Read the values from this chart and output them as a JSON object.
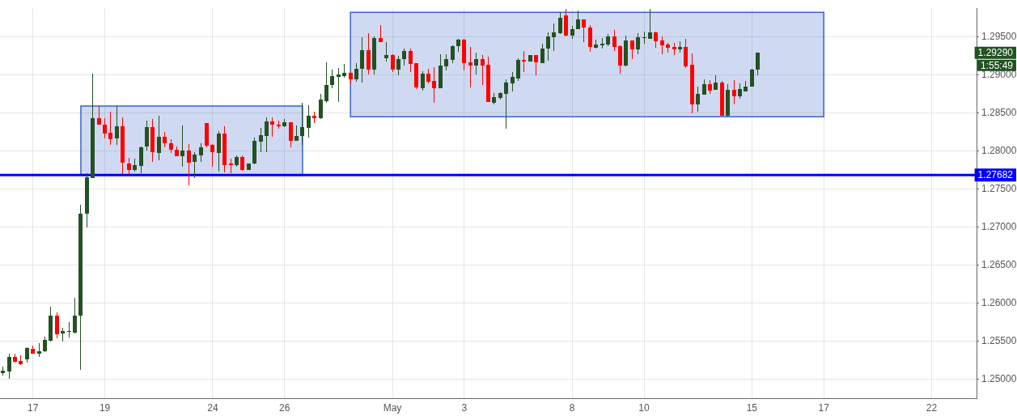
{
  "chart_data": {
    "type": "candlestick",
    "categories": [
      null,
      null,
      null,
      null,
      null,
      "17",
      null,
      null,
      null,
      null,
      null,
      null,
      null,
      null,
      null,
      null,
      null,
      "19",
      null,
      null,
      null,
      null,
      null,
      null,
      null,
      null,
      null,
      null,
      null,
      null,
      null,
      null,
      null,
      null,
      null,
      "24",
      null,
      null,
      null,
      null,
      null,
      null,
      null,
      null,
      null,
      null,
      null,
      "26",
      null,
      null,
      null,
      null,
      null,
      null,
      null,
      null,
      null,
      null,
      null,
      null,
      null,
      null,
      null,
      null,
      null,
      "May",
      null,
      null,
      null,
      null,
      null,
      null,
      null,
      null,
      null,
      null,
      null,
      "3",
      null,
      null,
      null,
      null,
      null,
      null,
      null,
      null,
      null,
      null,
      null,
      null,
      null,
      null,
      null,
      null,
      null,
      "8",
      null,
      null,
      null,
      null,
      null,
      null,
      null,
      null,
      null,
      null,
      null,
      "10",
      null,
      null,
      null,
      null,
      null,
      null,
      null,
      null,
      null,
      null,
      null,
      null,
      null,
      null,
      null,
      null,
      null,
      "15",
      null,
      null,
      null,
      null,
      null,
      null,
      null,
      null,
      null,
      null,
      null,
      "17",
      null,
      null,
      null,
      null,
      null,
      null,
      null,
      null,
      null,
      null,
      null,
      null,
      null,
      null,
      null,
      null,
      null,
      "22",
      null,
      null,
      null,
      null,
      null,
      null,
      null
    ],
    "ohlc": [
      [
        1.2508,
        1.2516,
        1.2505,
        1.2511
      ],
      [
        1.251,
        1.2533,
        1.2501,
        1.2529
      ],
      [
        1.2529,
        1.2533,
        1.2522,
        1.2523
      ],
      [
        1.2524,
        1.2531,
        1.2519,
        1.252
      ],
      [
        1.2526,
        1.2542,
        1.2522,
        1.2541
      ],
      [
        1.254,
        1.2544,
        1.2534,
        1.2534
      ],
      [
        1.2534,
        1.2547,
        1.2529,
        1.2537
      ],
      [
        1.2537,
        1.2556,
        1.2536,
        1.2552
      ],
      [
        1.2551,
        1.2595,
        1.2549,
        1.2584
      ],
      [
        1.2584,
        1.2588,
        1.2554,
        1.256
      ],
      [
        1.256,
        1.2568,
        1.2549,
        1.2563
      ],
      [
        1.2562,
        1.2575,
        1.2555,
        1.2563
      ],
      [
        1.2562,
        1.2607,
        1.256,
        1.2584
      ],
      [
        1.2584,
        1.2729,
        1.2512,
        1.2718
      ],
      [
        1.2717,
        1.2771,
        1.2699,
        1.2765
      ],
      [
        1.2764,
        1.2902,
        1.2764,
        1.2843
      ],
      [
        1.2843,
        1.2859,
        1.2835,
        1.2835
      ],
      [
        1.2835,
        1.2843,
        1.2816,
        1.2823
      ],
      [
        1.2824,
        1.2852,
        1.2808,
        1.2816
      ],
      [
        1.2816,
        1.2859,
        1.2808,
        1.2832
      ],
      [
        1.2832,
        1.2844,
        1.277,
        1.2784
      ],
      [
        1.2784,
        1.2791,
        1.2769,
        1.2776
      ],
      [
        1.2775,
        1.279,
        1.2773,
        1.2781
      ],
      [
        1.2781,
        1.2806,
        1.2771,
        1.2805
      ],
      [
        1.2805,
        1.284,
        1.2801,
        1.2831
      ],
      [
        1.2831,
        1.2842,
        1.2786,
        1.2798
      ],
      [
        1.2798,
        1.2846,
        1.2788,
        1.2819
      ],
      [
        1.2819,
        1.2825,
        1.2805,
        1.281
      ],
      [
        1.281,
        1.2815,
        1.2797,
        1.2801
      ],
      [
        1.2802,
        1.2806,
        1.2793,
        1.2794
      ],
      [
        1.2794,
        1.2833,
        1.2779,
        1.2801
      ],
      [
        1.2801,
        1.2809,
        1.2755,
        1.2785
      ],
      [
        1.2785,
        1.2798,
        1.2764,
        1.2795
      ],
      [
        1.2794,
        1.281,
        1.2786,
        1.2805
      ],
      [
        1.2837,
        1.2837,
        1.2805,
        1.2807
      ],
      [
        1.2808,
        1.2809,
        1.2779,
        1.2798
      ],
      [
        1.2798,
        1.2826,
        1.2773,
        1.2823
      ],
      [
        1.2823,
        1.2832,
        1.2772,
        1.2781
      ],
      [
        1.2783,
        1.279,
        1.2771,
        1.2781
      ],
      [
        1.2781,
        1.2794,
        1.2779,
        1.2792
      ],
      [
        1.2792,
        1.2794,
        1.2774,
        1.2775
      ],
      [
        1.2775,
        1.2784,
        1.2775,
        1.2783
      ],
      [
        1.2783,
        1.2818,
        1.2782,
        1.2813
      ],
      [
        1.2812,
        1.283,
        1.2798,
        1.2821
      ],
      [
        1.282,
        1.2844,
        1.2798,
        1.2839
      ],
      [
        1.2839,
        1.2844,
        1.2819,
        1.2835
      ],
      [
        1.2835,
        1.284,
        1.2829,
        1.2833
      ],
      [
        1.2833,
        1.2842,
        1.2831,
        1.2838
      ],
      [
        1.2838,
        1.2838,
        1.2805,
        1.2814
      ],
      [
        1.2814,
        1.2834,
        1.2813,
        1.282
      ],
      [
        1.2819,
        1.2863,
        1.2808,
        1.2831
      ],
      [
        1.283,
        1.286,
        1.2818,
        1.2846
      ],
      [
        1.2846,
        1.2852,
        1.2837,
        1.2843
      ],
      [
        1.2843,
        1.2875,
        1.2842,
        1.2867
      ],
      [
        1.2866,
        1.2916,
        1.2863,
        1.2887
      ],
      [
        1.2886,
        1.2907,
        1.2882,
        1.2898
      ],
      [
        1.2897,
        1.2909,
        1.2864,
        1.29
      ],
      [
        1.2899,
        1.2914,
        1.2896,
        1.2903
      ],
      [
        1.2903,
        1.2904,
        1.2888,
        1.2894
      ],
      [
        1.2894,
        1.2915,
        1.2891,
        1.2908
      ],
      [
        1.2908,
        1.2949,
        1.289,
        1.2932
      ],
      [
        1.2932,
        1.2955,
        1.2901,
        1.2907
      ],
      [
        1.2907,
        1.295,
        1.2901,
        1.2948
      ],
      [
        1.2948,
        1.2965,
        1.2943,
        1.2943
      ],
      [
        1.2922,
        1.2943,
        1.2917,
        1.2926
      ],
      [
        1.2926,
        1.2927,
        1.2904,
        1.2907
      ],
      [
        1.2907,
        1.2925,
        1.2899,
        1.2921
      ],
      [
        1.292,
        1.2935,
        1.2912,
        1.2931
      ],
      [
        1.2931,
        1.2935,
        1.2904,
        1.2914
      ],
      [
        1.2915,
        1.2915,
        1.2881,
        1.2883
      ],
      [
        1.2883,
        1.2905,
        1.2879,
        1.2902
      ],
      [
        1.2902,
        1.2908,
        1.2889,
        1.2891
      ],
      [
        1.2892,
        1.291,
        1.2863,
        1.2882
      ],
      [
        1.2882,
        1.2927,
        1.2882,
        1.2912
      ],
      [
        1.2911,
        1.2927,
        1.2906,
        1.2921
      ],
      [
        1.292,
        1.2939,
        1.2915,
        1.2938
      ],
      [
        1.2937,
        1.2947,
        1.293,
        1.2946
      ],
      [
        1.2946,
        1.2947,
        1.2906,
        1.2915
      ],
      [
        1.2916,
        1.2937,
        1.2884,
        1.2912
      ],
      [
        1.2912,
        1.2929,
        1.2901,
        1.2921
      ],
      [
        1.2921,
        1.2926,
        1.2887,
        1.2913
      ],
      [
        1.2913,
        1.2924,
        1.2864,
        1.2864
      ],
      [
        1.2864,
        1.2876,
        1.2861,
        1.2871
      ],
      [
        1.287,
        1.2877,
        1.2868,
        1.2876
      ],
      [
        1.2875,
        1.2894,
        1.2829,
        1.289
      ],
      [
        1.2889,
        1.2904,
        1.2878,
        1.2897
      ],
      [
        1.2896,
        1.2922,
        1.2892,
        1.292
      ],
      [
        1.292,
        1.2931,
        1.2904,
        1.2918
      ],
      [
        1.2918,
        1.2926,
        1.2917,
        1.2926
      ],
      [
        1.2926,
        1.2926,
        1.2899,
        1.2916
      ],
      [
        1.2916,
        1.2941,
        1.2916,
        1.2935
      ],
      [
        1.2935,
        1.2956,
        1.2919,
        1.2951
      ],
      [
        1.295,
        1.2968,
        1.2931,
        1.2956
      ],
      [
        1.2955,
        1.2982,
        1.2954,
        1.2975
      ],
      [
        1.2978,
        1.2987,
        1.2951,
        1.2951
      ],
      [
        1.2951,
        1.2964,
        1.2947,
        1.296
      ],
      [
        1.296,
        1.2984,
        1.296,
        1.2973
      ],
      [
        1.2973,
        1.2973,
        1.2943,
        1.2962
      ],
      [
        1.2962,
        1.2965,
        1.293,
        1.2936
      ],
      [
        1.2936,
        1.2946,
        1.2934,
        1.294
      ],
      [
        1.2939,
        1.2948,
        1.2934,
        1.2941
      ],
      [
        1.294,
        1.2954,
        1.2938,
        1.2951
      ],
      [
        1.2951,
        1.2959,
        1.2931,
        1.2937
      ],
      [
        1.2938,
        1.2939,
        1.2902,
        1.2912
      ],
      [
        1.2912,
        1.2952,
        1.2911,
        1.2945
      ],
      [
        1.2945,
        1.2945,
        1.2921,
        1.2933
      ],
      [
        1.2933,
        1.2955,
        1.2927,
        1.2949
      ],
      [
        1.2948,
        1.2957,
        1.2941,
        1.2949
      ],
      [
        1.2948,
        1.2987,
        1.2948,
        1.2956
      ],
      [
        1.2956,
        1.2957,
        1.2936,
        1.2944
      ],
      [
        1.2945,
        1.2951,
        1.2927,
        1.2939
      ],
      [
        1.294,
        1.2942,
        1.2929,
        1.2936
      ],
      [
        1.2937,
        1.2942,
        1.2926,
        1.2934
      ],
      [
        1.2934,
        1.2944,
        1.2929,
        1.2937
      ],
      [
        1.2937,
        1.2947,
        1.2909,
        1.2912
      ],
      [
        1.2913,
        1.2928,
        1.2849,
        1.2861
      ],
      [
        1.2861,
        1.2885,
        1.2852,
        1.2875
      ],
      [
        1.2874,
        1.2894,
        1.2874,
        1.2888
      ],
      [
        1.2888,
        1.2893,
        1.2875,
        1.288
      ],
      [
        1.288,
        1.2899,
        1.288,
        1.289
      ],
      [
        1.289,
        1.2892,
        1.2846,
        1.2846
      ],
      [
        1.2846,
        1.2888,
        1.2845,
        1.288
      ],
      [
        1.288,
        1.2893,
        1.2861,
        1.2871
      ],
      [
        1.2871,
        1.2889,
        1.2869,
        1.2881
      ],
      [
        1.2879,
        1.2892,
        1.2879,
        1.2885
      ],
      [
        1.2885,
        1.2908,
        1.2885,
        1.2907
      ],
      [
        1.2907,
        1.2929,
        1.2899,
        1.2929
      ],
      null,
      null,
      null,
      null,
      null,
      null,
      null,
      null,
      null,
      null,
      null,
      null,
      null,
      null,
      null,
      null,
      null,
      null,
      null,
      null,
      null,
      null,
      null,
      null,
      null,
      null,
      null,
      null,
      null,
      null,
      null,
      null,
      null,
      null,
      null,
      null
    ],
    "colors": [
      "#225222",
      "#225222",
      "#ff0000",
      "#ff0000",
      "#225222",
      "#ff0000",
      "#225222",
      "#225222",
      "#225222",
      "#ff0000",
      "#225222",
      "#225222",
      "#225222",
      "#225222",
      "#225222",
      "#225222",
      "#ff0000",
      "#ff0000",
      "#ff0000",
      "#225222",
      "#ff0000",
      "#ff0000",
      "#225222",
      "#225222",
      "#225222",
      "#ff0000",
      "#225222",
      "#ff0000",
      "#ff0000",
      "#ff0000",
      "#225222",
      "#ff0000",
      "#225222",
      "#225222",
      "#ff0000",
      "#ff0000",
      "#225222",
      "#ff0000",
      "#ff0000",
      "#225222",
      "#ff0000",
      "#225222",
      "#225222",
      "#225222",
      "#225222",
      "#ff0000",
      "#ff0000",
      "#225222",
      "#ff0000",
      "#225222",
      "#225222",
      "#225222",
      "#ff0000",
      "#225222",
      "#225222",
      "#225222",
      "#225222",
      "#225222",
      "#ff0000",
      "#225222",
      "#225222",
      "#ff0000",
      "#225222",
      "#ff0000",
      "#225222",
      "#ff0000",
      "#225222",
      "#225222",
      "#ff0000",
      "#ff0000",
      "#225222",
      "#ff0000",
      "#ff0000",
      "#225222",
      "#225222",
      "#225222",
      "#225222",
      "#ff0000",
      "#ff0000",
      "#225222",
      "#ff0000",
      "#ff0000",
      "#225222",
      "#225222",
      "#225222",
      "#225222",
      "#225222",
      "#ff0000",
      "#225222",
      "#ff0000",
      "#225222",
      "#225222",
      "#225222",
      "#225222",
      "#ff0000",
      "#225222",
      "#225222",
      "#ff0000",
      "#ff0000",
      "#225222",
      "#225222",
      "#225222",
      "#ff0000",
      "#ff0000",
      "#225222",
      "#ff0000",
      "#225222",
      "#225222",
      "#225222",
      "#ff0000",
      "#ff0000",
      "#ff0000",
      "#ff0000",
      "#225222",
      "#ff0000",
      "#ff0000",
      "#225222",
      "#225222",
      "#ff0000",
      "#225222",
      "#ff0000",
      "#225222",
      "#ff0000",
      "#225222",
      "#225222",
      "#225222",
      "#225222",
      null,
      null,
      null,
      null,
      null,
      null,
      null,
      null,
      null,
      null,
      null,
      null,
      null,
      null,
      null,
      null,
      null,
      null,
      null,
      null,
      null,
      null,
      null,
      null,
      null,
      null,
      null,
      null,
      null,
      null,
      null,
      null,
      null,
      null,
      null,
      null
    ],
    "series": [
      {
        "type": "line",
        "color": "#3a62c8",
        "values": [
          null,
          null,
          null,
          null,
          null,
          null,
          null,
          null,
          null,
          null,
          null,
          null,
          null,
          null,
          null,
          null,
          null,
          null,
          null,
          null,
          null,
          null,
          null,
          null,
          null,
          null,
          null,
          null,
          null,
          null,
          null,
          null,
          null,
          null,
          null,
          null,
          null,
          null,
          null,
          null,
          null,
          null,
          null,
          null,
          null,
          null,
          null,
          null,
          null,
          null,
          null,
          null,
          null,
          null,
          null,
          null,
          null,
          null,
          null,
          null,
          null,
          null,
          null,
          null,
          null,
          null,
          null,
          null,
          null,
          null,
          null,
          null,
          null,
          null,
          null,
          null,
          null,
          null,
          null,
          null,
          null,
          null,
          null,
          null,
          null,
          null,
          null,
          null,
          null,
          null,
          null,
          null,
          null,
          null,
          null,
          null,
          null,
          null,
          null,
          null,
          null,
          null,
          null,
          null,
          null,
          null,
          null,
          null,
          null,
          null,
          null,
          null,
          null,
          null,
          null,
          null,
          null,
          null,
          null,
          null,
          null,
          null,
          null,
          null,
          null,
          null,
          null,
          null,
          null,
          null,
          null,
          null,
          null,
          null,
          null,
          null,
          null,
          null,
          null,
          null,
          null,
          null,
          null,
          null,
          null,
          null,
          null,
          null,
          null,
          null,
          null,
          null,
          null,
          null,
          null,
          null,
          null,
          null,
          null,
          null,
          null,
          null,
          null
        ],
        "lower": [
          null,
          null,
          null,
          null,
          null,
          null,
          null,
          null,
          null,
          null,
          null,
          null,
          null,
          1.2768,
          1.2768,
          1.2768,
          1.2768,
          1.2768,
          1.2768,
          1.2768,
          1.2768,
          1.2768,
          1.2768,
          1.2768,
          1.2768,
          1.2768,
          1.2768,
          1.2768,
          1.2768,
          1.2768,
          1.2768,
          1.2768,
          1.2768,
          1.2768,
          1.2768,
          1.2768,
          1.2768,
          1.2768,
          1.2768,
          1.2768,
          1.2768,
          1.2768,
          1.2768,
          1.2768,
          1.2768,
          1.2768,
          1.2768,
          1.2768,
          1.2768,
          1.2768,
          1.2768,
          null,
          null,
          null,
          null,
          null,
          null,
          null,
          null,
          null,
          null,
          null,
          null,
          null,
          null,
          null,
          null,
          null,
          null,
          null,
          null,
          null,
          null,
          null,
          null,
          null,
          null,
          null,
          null,
          null,
          null,
          null,
          null,
          null,
          null,
          null,
          null,
          null,
          null,
          null,
          null,
          null,
          null,
          null,
          null,
          null,
          null,
          null,
          null,
          null,
          null,
          null,
          null,
          null,
          null,
          null,
          null,
          null,
          null,
          null,
          null,
          null,
          null,
          null,
          null,
          null,
          null,
          null,
          null,
          null,
          null,
          null,
          null,
          null,
          null,
          null,
          null,
          null,
          null,
          null,
          null,
          null,
          null,
          null,
          null,
          null,
          null,
          null,
          null,
          null,
          null,
          null,
          null,
          null,
          null,
          null,
          null,
          null,
          null,
          null,
          null,
          null,
          null,
          null,
          null,
          null,
          null,
          null,
          null,
          null,
          null,
          null,
          null
        ],
        "upper": [
          null,
          null,
          null,
          null,
          null,
          null,
          null,
          null,
          null,
          null,
          null,
          null,
          null,
          1.2859,
          1.2859,
          1.2859,
          1.2859,
          1.2859,
          1.2859,
          1.2859,
          1.2859,
          1.2859,
          1.2859,
          1.2859,
          1.2859,
          1.2859,
          1.2859,
          1.2859,
          1.2859,
          1.2859,
          1.2859,
          1.2859,
          1.2859,
          1.2859,
          1.2859,
          1.2859,
          1.2859,
          1.2859,
          1.2859,
          1.2859,
          1.2859,
          1.2859,
          1.2859,
          1.2859,
          1.2859,
          1.2859,
          1.2859,
          1.2859,
          1.2859,
          1.2859,
          1.2859,
          null,
          null,
          null,
          null,
          null,
          null,
          null,
          null,
          null,
          null,
          null,
          null,
          null,
          null,
          null,
          null,
          null,
          null,
          null,
          null,
          null,
          null,
          null,
          null,
          null,
          null,
          null,
          null,
          null,
          null,
          null,
          null,
          null,
          null,
          null,
          null,
          null,
          null,
          null,
          null,
          null,
          null,
          null,
          null,
          null,
          null,
          null,
          null,
          null,
          null,
          null,
          null,
          null,
          null,
          null,
          null,
          null,
          null,
          null,
          null,
          null,
          null,
          null,
          null,
          null,
          null,
          null,
          null,
          null,
          null,
          null,
          null,
          null,
          null,
          null,
          null,
          null,
          null,
          null,
          null,
          null,
          null,
          null,
          null,
          null,
          null,
          null,
          null,
          null,
          null,
          null,
          null,
          null,
          null,
          null,
          null,
          null,
          null,
          null,
          null,
          null,
          null,
          null,
          null,
          null,
          null,
          null,
          null,
          null,
          null,
          null,
          null
        ]
      },
      {
        "type": "line",
        "color": "#3a62c8",
        "values": [
          null,
          null,
          null,
          null,
          null,
          null,
          null,
          null,
          null,
          null,
          null,
          null,
          null,
          null,
          null,
          null,
          null,
          null,
          null,
          null,
          null,
          null,
          null,
          null,
          null,
          null,
          null,
          null,
          null,
          null,
          null,
          null,
          null,
          null,
          null,
          null,
          null,
          null,
          null,
          null,
          null,
          null,
          null,
          null,
          null,
          null,
          null,
          null,
          null,
          null,
          null,
          null,
          null,
          null,
          null,
          null,
          null,
          null,
          null,
          null,
          null,
          null,
          null,
          null,
          null,
          null,
          null,
          null,
          null,
          null,
          null,
          null,
          null,
          null,
          null,
          null,
          null,
          null,
          null,
          null,
          null,
          null,
          null,
          null,
          null,
          null,
          null,
          null,
          null,
          null,
          null,
          null,
          null,
          null,
          null,
          null,
          null,
          null,
          null,
          null,
          null,
          null,
          null,
          null,
          null,
          null,
          null,
          null,
          null,
          null,
          null,
          null,
          null,
          null,
          null,
          null,
          null,
          null,
          null,
          null,
          null,
          null,
          null,
          null,
          null,
          null,
          null,
          null,
          null,
          null,
          null,
          null,
          null,
          null,
          null,
          null,
          null,
          null,
          null,
          null,
          null,
          null,
          null,
          null,
          null,
          null,
          null,
          null,
          null,
          null,
          null,
          null,
          null,
          null,
          null,
          null,
          null,
          null,
          null,
          null,
          null,
          null,
          null
        ],
        "lower": [
          null,
          null,
          null,
          null,
          null,
          null,
          null,
          null,
          null,
          null,
          null,
          null,
          null,
          null,
          null,
          null,
          null,
          null,
          null,
          null,
          null,
          null,
          null,
          null,
          null,
          null,
          null,
          null,
          null,
          null,
          null,
          null,
          null,
          null,
          null,
          null,
          null,
          null,
          null,
          null,
          null,
          null,
          null,
          null,
          null,
          null,
          null,
          null,
          null,
          null,
          null,
          null,
          null,
          null,
          null,
          null,
          null,
          null,
          1.2845,
          1.2845,
          1.2845,
          1.2845,
          1.2845,
          1.2845,
          1.2845,
          1.2845,
          1.2845,
          1.2845,
          1.2845,
          1.2845,
          1.2845,
          1.2845,
          1.2845,
          1.2845,
          1.2845,
          1.2845,
          1.2845,
          1.2845,
          1.2845,
          1.2845,
          1.2845,
          1.2845,
          1.2845,
          1.2845,
          1.2845,
          1.2845,
          1.2845,
          1.2845,
          1.2845,
          1.2845,
          1.2845,
          1.2845,
          1.2845,
          1.2845,
          1.2845,
          1.2845,
          1.2845,
          1.2845,
          1.2845,
          1.2845,
          1.2845,
          1.2845,
          1.2845,
          1.2845,
          1.2845,
          1.2845,
          1.2845,
          1.2845,
          1.2845,
          1.2845,
          1.2845,
          1.2845,
          1.2845,
          1.2845,
          1.2845,
          1.2845,
          1.2845,
          1.2845,
          1.2845,
          1.2845,
          1.2845,
          1.2845,
          1.2845,
          1.2845,
          1.2845,
          1.2845,
          1.2845,
          1.2845,
          1.2845,
          1.2845,
          1.2845,
          1.2845,
          1.2845,
          1.2845,
          1.2845,
          1.2845,
          1.2845,
          1.2845,
          null,
          null,
          null,
          null,
          null,
          null,
          null,
          null,
          null,
          null,
          null,
          null,
          null,
          null,
          null,
          null,
          null,
          null,
          null,
          null,
          null,
          null,
          null,
          null,
          null
        ],
        "upper": [
          null,
          null,
          null,
          null,
          null,
          null,
          null,
          null,
          null,
          null,
          null,
          null,
          null,
          null,
          null,
          null,
          null,
          null,
          null,
          null,
          null,
          null,
          null,
          null,
          null,
          null,
          null,
          null,
          null,
          null,
          null,
          null,
          null,
          null,
          null,
          null,
          null,
          null,
          null,
          null,
          null,
          null,
          null,
          null,
          null,
          null,
          null,
          null,
          null,
          null,
          null,
          null,
          null,
          null,
          null,
          null,
          null,
          null,
          1.2982,
          1.2982,
          1.2982,
          1.2982,
          1.2982,
          1.2982,
          1.2982,
          1.2982,
          1.2982,
          1.2982,
          1.2982,
          1.2982,
          1.2982,
          1.2982,
          1.2982,
          1.2982,
          1.2982,
          1.2982,
          1.2982,
          1.2982,
          1.2982,
          1.2982,
          1.2982,
          1.2982,
          1.2982,
          1.2982,
          1.2982,
          1.2982,
          1.2982,
          1.2982,
          1.2982,
          1.2982,
          1.2982,
          1.2982,
          1.2982,
          1.2982,
          1.2982,
          1.2982,
          1.2982,
          1.2982,
          1.2982,
          1.2982,
          1.2982,
          1.2982,
          1.2982,
          1.2982,
          1.2982,
          1.2982,
          1.2982,
          1.2982,
          1.2982,
          1.2982,
          1.2982,
          1.2982,
          1.2982,
          1.2982,
          1.2982,
          1.2982,
          1.2982,
          1.2982,
          1.2982,
          1.2982,
          1.2982,
          1.2982,
          1.2982,
          1.2982,
          1.2982,
          1.2982,
          1.2982,
          1.2982,
          1.2982,
          1.2982,
          1.2982,
          1.2982,
          1.2982,
          1.2982,
          1.2982,
          1.2982,
          1.2982,
          1.2982,
          null,
          null,
          null,
          null,
          null,
          null,
          null,
          null,
          null,
          null,
          null,
          null,
          null,
          null,
          null,
          null,
          null,
          null,
          null,
          null,
          null,
          null,
          null,
          null,
          null
        ]
      }
    ],
    "ylim": [
      1.2475,
      1.29875
    ],
    "yticks": [
      {
        "value": 1.25,
        "label": "1.25000"
      },
      {
        "value": 1.255,
        "label": "1.25500"
      },
      {
        "value": 1.26,
        "label": "1.26000"
      },
      {
        "value": 1.265,
        "label": "1.26500"
      },
      {
        "value": 1.27,
        "label": "1.27000"
      },
      {
        "value": 1.275,
        "label": "1.27500"
      },
      {
        "value": 1.28,
        "label": "1.28000"
      },
      {
        "value": 1.285,
        "label": "1.28500"
      },
      {
        "value": 1.29,
        "label": "1.29000"
      },
      {
        "value": 1.295,
        "label": "1.29500"
      }
    ],
    "grid": true,
    "ref_lines": [
      {
        "axis": "y",
        "value": 1.27682,
        "label": "1.27682",
        "color": "#0000ff"
      }
    ],
    "annotations": [
      "1.29290",
      "1:55:49"
    ]
  }
}
